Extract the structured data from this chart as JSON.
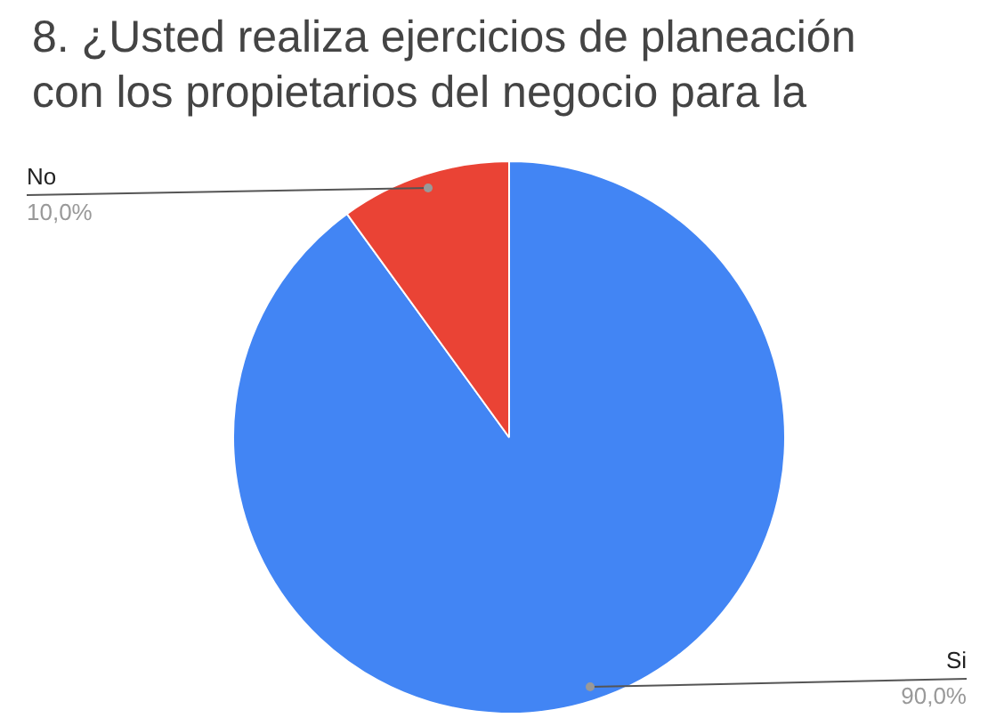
{
  "chart_data": {
    "type": "pie",
    "title": "8. ¿Usted realiza ejercicios de planeación con los propietarios del negocio para la",
    "categories": [
      "Si",
      "No"
    ],
    "values": [
      90,
      10
    ],
    "colors": [
      "#4285f4",
      "#ea4335"
    ],
    "value_labels": [
      "90,0%",
      "10,0%"
    ],
    "legend": false
  }
}
